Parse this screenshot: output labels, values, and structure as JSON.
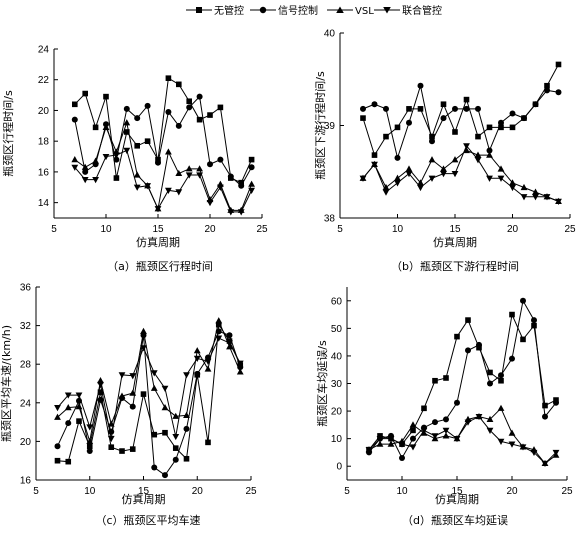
{
  "legend": [
    {
      "name": "无管控",
      "marker": "square"
    },
    {
      "name": "信号控制",
      "marker": "circle"
    },
    {
      "name": "VSL",
      "marker": "triangle-up"
    },
    {
      "name": "联合管控",
      "marker": "triangle-down"
    }
  ],
  "chart_data": [
    {
      "type": "line",
      "caption": "（a）瓶颈区行程时间",
      "xlabel": "仿真周期",
      "ylabel": "瓶颈区行程时间/s",
      "xlim": [
        5,
        25
      ],
      "ylim": [
        13,
        24
      ],
      "xticks": [
        5,
        10,
        15,
        20,
        25
      ],
      "yticks": [
        14,
        16,
        18,
        20,
        22,
        24
      ],
      "x": [
        7,
        8,
        9,
        10,
        11,
        12,
        13,
        14,
        15,
        16,
        17,
        18,
        19,
        20,
        21,
        22,
        23,
        24
      ],
      "series": [
        {
          "name": "无管控",
          "marker": "square",
          "values": [
            20.4,
            21.1,
            18.9,
            20.9,
            15.6,
            18.6,
            17.7,
            18.0,
            16.8,
            22.1,
            21.7,
            20.6,
            19.4,
            19.7,
            20.2,
            15.6,
            15.3,
            16.8
          ]
        },
        {
          "name": "信号控制",
          "marker": "circle",
          "values": [
            19.4,
            16.0,
            16.5,
            19.1,
            16.8,
            20.1,
            19.5,
            20.3,
            16.6,
            19.9,
            19.0,
            20.2,
            20.9,
            16.5,
            16.8,
            15.7,
            15.1,
            16.3
          ]
        },
        {
          "name": "VSL",
          "marker": "triangle-up",
          "values": [
            16.8,
            16.3,
            16.7,
            18.9,
            17.3,
            19.2,
            15.8,
            15.1,
            13.6,
            17.3,
            15.9,
            16.2,
            16.2,
            14.2,
            15.2,
            13.5,
            13.5,
            15.2
          ]
        },
        {
          "name": "联合管控",
          "marker": "triangle-down",
          "values": [
            16.3,
            15.5,
            15.5,
            17.0,
            17.1,
            17.4,
            15.0,
            15.1,
            13.6,
            14.8,
            14.7,
            15.8,
            15.8,
            14.0,
            15.0,
            13.4,
            13.4,
            14.8
          ]
        }
      ]
    },
    {
      "type": "line",
      "caption": "（b）瓶颈区下游行程时间",
      "xlabel": "仿真周期",
      "ylabel": "瓶颈区下游行程时间/s",
      "xlim": [
        5,
        25
      ],
      "ylim": [
        38,
        40
      ],
      "xticks": [
        5,
        10,
        15,
        20,
        25
      ],
      "yticks": [
        38,
        39,
        40
      ],
      "x": [
        7,
        8,
        9,
        10,
        11,
        12,
        13,
        14,
        15,
        16,
        17,
        18,
        19,
        20,
        21,
        22,
        23,
        24
      ],
      "series": [
        {
          "name": "无管控",
          "marker": "square",
          "values": [
            39.08,
            38.68,
            38.88,
            38.98,
            39.18,
            39.18,
            38.88,
            39.23,
            38.93,
            39.28,
            38.88,
            38.98,
            38.98,
            38.98,
            39.08,
            39.23,
            39.43,
            39.66
          ]
        },
        {
          "name": "信号控制",
          "marker": "circle",
          "values": [
            39.18,
            39.23,
            39.18,
            38.65,
            39.03,
            39.43,
            38.83,
            39.08,
            39.18,
            39.18,
            39.18,
            38.73,
            39.03,
            39.13,
            39.08,
            39.23,
            39.38,
            39.36
          ]
        },
        {
          "name": "VSL",
          "marker": "triangle-up",
          "values": [
            38.43,
            38.58,
            38.33,
            38.43,
            38.53,
            38.38,
            38.63,
            38.53,
            38.63,
            38.73,
            38.68,
            38.68,
            38.53,
            38.38,
            38.33,
            38.28,
            38.23,
            38.18
          ]
        },
        {
          "name": "联合管控",
          "marker": "triangle-down",
          "values": [
            38.43,
            38.58,
            38.28,
            38.38,
            38.48,
            38.33,
            38.43,
            38.48,
            38.48,
            38.78,
            38.63,
            38.43,
            38.43,
            38.33,
            38.23,
            38.23,
            38.23,
            38.18
          ]
        }
      ]
    },
    {
      "type": "line",
      "caption": "（c）瓶颈区平均车速",
      "xlabel": "仿真周期",
      "ylabel": "瓶颈区平均车速/(km/h)",
      "xlim": [
        5,
        25
      ],
      "ylim": [
        16,
        36
      ],
      "xticks": [
        5,
        10,
        15,
        20,
        25
      ],
      "yticks": [
        16,
        20,
        24,
        28,
        32,
        36
      ],
      "x": [
        7,
        8,
        9,
        10,
        11,
        12,
        13,
        14,
        15,
        16,
        17,
        18,
        19,
        20,
        21,
        22,
        23,
        24
      ],
      "series": [
        {
          "name": "无管控",
          "marker": "square",
          "values": [
            18.0,
            17.9,
            22.1,
            19.5,
            25.1,
            19.4,
            19.0,
            19.2,
            24.9,
            20.7,
            20.9,
            19.3,
            18.2,
            26.9,
            19.9,
            32.1,
            30.4,
            27.9
          ]
        },
        {
          "name": "信号控制",
          "marker": "circle",
          "values": [
            19.5,
            21.9,
            24.2,
            19.0,
            24.3,
            21.0,
            24.5,
            23.6,
            31.0,
            17.3,
            16.5,
            18.1,
            21.3,
            27.0,
            28.7,
            31.4,
            31.0,
            27.7
          ]
        },
        {
          "name": "VSL",
          "marker": "triangle-up",
          "values": [
            22.5,
            23.5,
            23.6,
            20.0,
            26.3,
            21.8,
            24.7,
            25.0,
            31.4,
            25.5,
            23.5,
            22.6,
            22.7,
            29.4,
            27.5,
            32.5,
            29.8,
            27.2
          ]
        },
        {
          "name": "联合管控",
          "marker": "triangle-down",
          "values": [
            23.5,
            24.8,
            24.8,
            21.5,
            25.9,
            20.3,
            26.9,
            26.8,
            29.7,
            27.1,
            25.5,
            20.5,
            26.9,
            28.6,
            28.3,
            30.7,
            30.2,
            28.1
          ]
        }
      ]
    },
    {
      "type": "line",
      "caption": "（d）瓶颈区车均延误",
      "xlabel": "仿真周期",
      "ylabel": "瓶颈区车均延误/s",
      "xlim": [
        5,
        25
      ],
      "ylim": [
        -5,
        65
      ],
      "xticks": [
        5,
        10,
        15,
        20,
        25
      ],
      "yticks": [
        0,
        10,
        20,
        30,
        40,
        50,
        60
      ],
      "x": [
        7,
        8,
        9,
        10,
        11,
        12,
        13,
        14,
        15,
        16,
        17,
        18,
        19,
        20,
        21,
        22,
        23,
        24
      ],
      "series": [
        {
          "name": "无管控",
          "marker": "square",
          "values": [
            6,
            11,
            10,
            8,
            13,
            21,
            31,
            32,
            47,
            53,
            43,
            34,
            31,
            55,
            46,
            51,
            22,
            24
          ]
        },
        {
          "name": "信号控制",
          "marker": "circle",
          "values": [
            5,
            10,
            11,
            3,
            10,
            14,
            16,
            17,
            23,
            42,
            44,
            30,
            33,
            39,
            60,
            53,
            18,
            23
          ]
        },
        {
          "name": "VSL",
          "marker": "triangle-up",
          "values": [
            6,
            8,
            8,
            9,
            15,
            12,
            10,
            11,
            10,
            17,
            18,
            17,
            21,
            12,
            7,
            6,
            1,
            4
          ]
        },
        {
          "name": "联合管控",
          "marker": "triangle-down",
          "values": [
            6,
            10,
            10,
            8,
            7,
            13,
            11,
            13,
            10,
            16,
            18,
            13,
            9,
            8,
            7,
            5,
            1,
            5
          ]
        }
      ]
    }
  ]
}
